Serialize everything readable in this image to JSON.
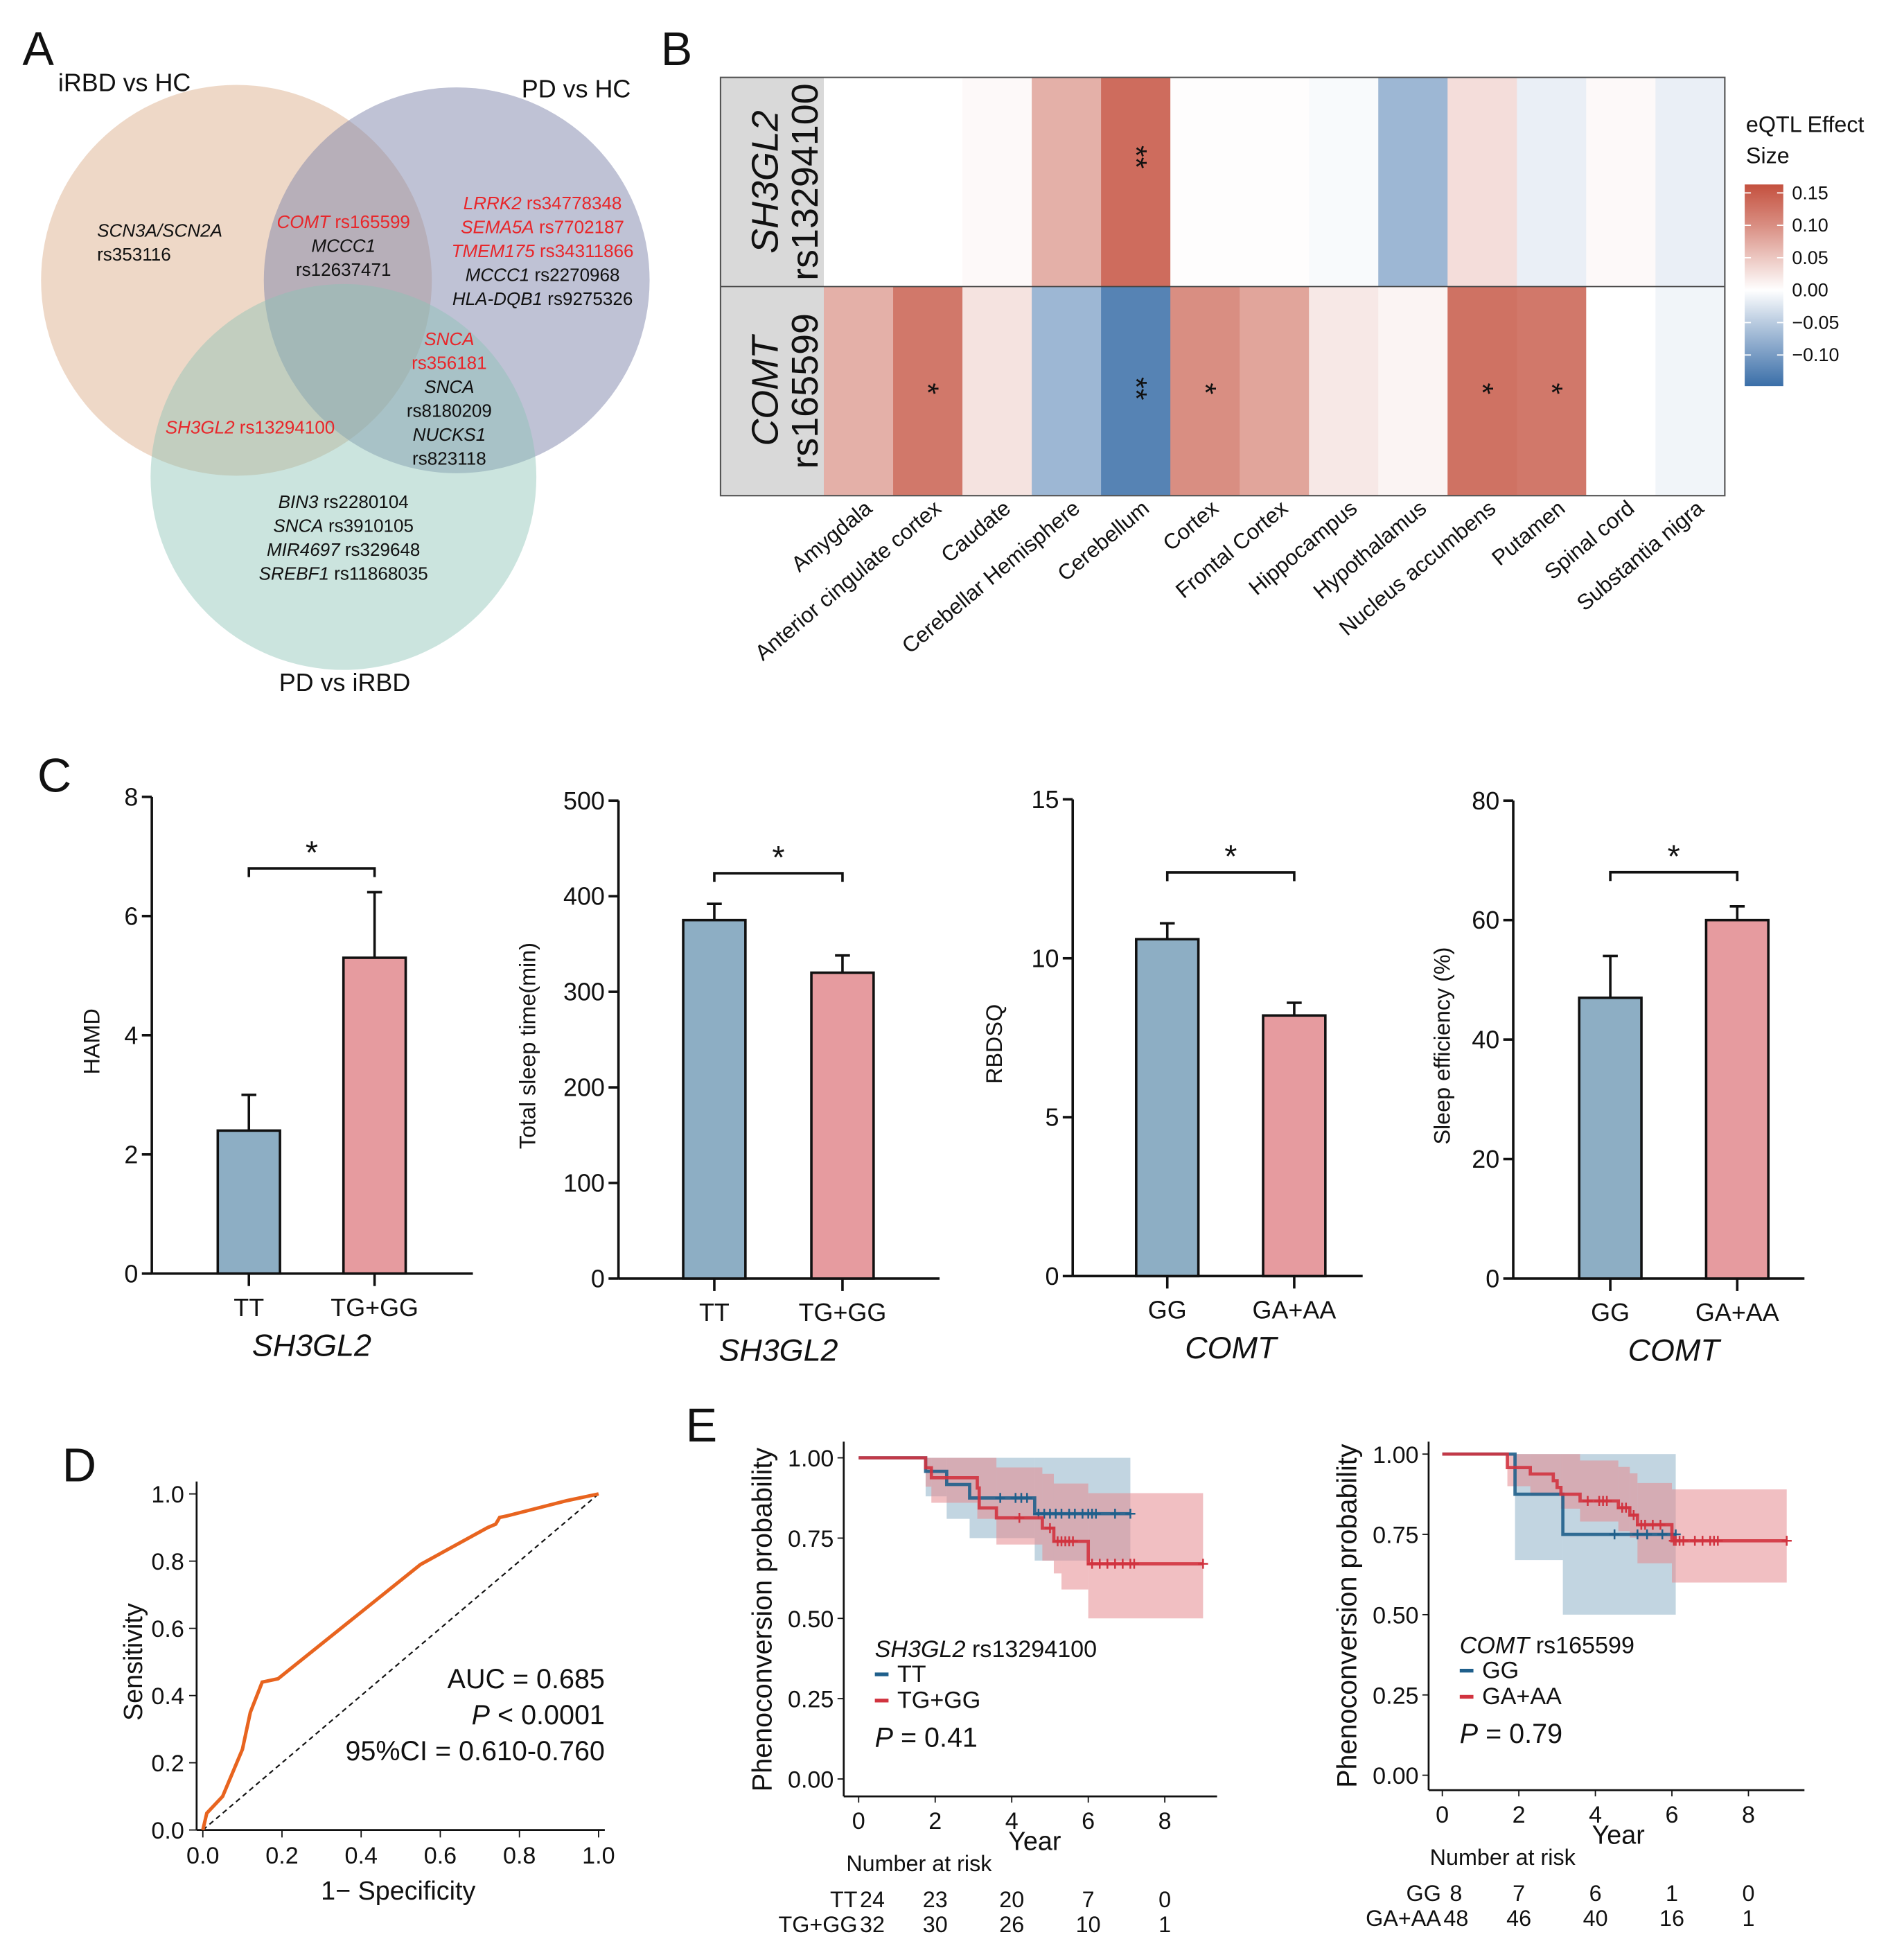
{
  "panel_labels": {
    "A": "A",
    "B": "B",
    "C": "C",
    "D": "D",
    "E": "E"
  },
  "venn": {
    "sets": [
      {
        "name": "iRBD vs HC",
        "color": "#d9a982"
      },
      {
        "name": "PD vs HC",
        "color": "#7f86ab"
      },
      {
        "name": "PD vs iRBD",
        "color": "#8cc3b5"
      }
    ],
    "highlight_color": "#e8262a",
    "regions": [
      {
        "region": "iRBD vs HC only",
        "lines": [
          {
            "gene": "SCN3A/SCN2A",
            "rs": ""
          },
          {
            "gene": "",
            "rs": "rs353116"
          }
        ]
      },
      {
        "region": "iRBD vs HC & PD vs HC",
        "lines": [
          {
            "gene": "COMT",
            "rs": "rs165599",
            "highlight": true
          },
          {
            "gene": "MCCC1",
            "rs": ""
          },
          {
            "gene": "",
            "rs": "rs12637471"
          }
        ]
      },
      {
        "region": "PD vs HC only",
        "lines": [
          {
            "gene": "LRRK2",
            "rs": "rs34778348",
            "highlight": true
          },
          {
            "gene": "SEMA5A",
            "rs": "rs7702187",
            "highlight": true
          },
          {
            "gene": "TMEM175",
            "rs": "rs34311866",
            "highlight": true
          },
          {
            "gene": "MCCC1",
            "rs": "rs2270968"
          },
          {
            "gene": "HLA-DQB1",
            "rs": "rs9275326"
          }
        ]
      },
      {
        "region": "PD vs HC & PD vs iRBD",
        "lines": [
          {
            "gene": "SNCA",
            "rs": "",
            "highlight": true
          },
          {
            "gene": "",
            "rs": "rs356181",
            "highlight": true
          },
          {
            "gene": "SNCA",
            "rs": ""
          },
          {
            "gene": "",
            "rs": "rs8180209"
          },
          {
            "gene": "NUCKS1",
            "rs": ""
          },
          {
            "gene": "",
            "rs": "rs823118"
          }
        ]
      },
      {
        "region": "iRBD vs HC & PD vs iRBD",
        "lines": [
          {
            "gene": "SH3GL2",
            "rs": "rs13294100",
            "highlight": true
          }
        ]
      },
      {
        "region": "PD vs iRBD only",
        "lines": [
          {
            "gene": "BIN3",
            "rs": "rs2280104"
          },
          {
            "gene": "SNCA",
            "rs": "rs3910105"
          },
          {
            "gene": "MIR4697",
            "rs": "rs329648"
          },
          {
            "gene": "SREBF1",
            "rs": "rs11868035"
          }
        ]
      }
    ]
  },
  "chart_data": [
    {
      "id": "B",
      "type": "heatmap",
      "rows": [
        {
          "gene": "SH3GL2",
          "rs": "rs13294100"
        },
        {
          "gene": "COMT",
          "rs": "rs165599"
        }
      ],
      "columns": [
        "Amygdala",
        "Anterior cingulate cortex",
        "Caudate",
        "Cerebellar Hemisphere",
        "Cerebellum",
        "Cortex",
        "Frontal Cortex",
        "Hippocampus",
        "Hypothalamus",
        "Nucleus accumbens",
        "Putamen",
        "Spinal cord",
        "Substantia nigra"
      ],
      "values": [
        [
          0.0,
          0.0,
          0.005,
          0.07,
          0.13,
          0.002,
          0.002,
          -0.005,
          -0.07,
          0.03,
          -0.015,
          0.005,
          -0.015
        ],
        [
          0.07,
          0.12,
          0.025,
          -0.07,
          -0.12,
          0.1,
          0.08,
          0.02,
          0.01,
          0.125,
          0.12,
          0.0,
          -0.01
        ]
      ],
      "significance": [
        [
          "",
          "",
          "",
          "",
          "**",
          "",
          "",
          "",
          "",
          "",
          "",
          "",
          ""
        ],
        [
          "",
          "*",
          "",
          "",
          "**",
          "*",
          "",
          "",
          "",
          "*",
          "*",
          "",
          ""
        ]
      ],
      "legend": {
        "title_line1": "eQTL Effect",
        "title_line2": "Size",
        "ticks": [
          "0.15",
          "0.10",
          "0.05",
          "0.00",
          "−0.05",
          "−0.10"
        ],
        "tick_values": [
          0.15,
          0.1,
          0.05,
          0.0,
          -0.05,
          -0.1
        ],
        "range": [
          -0.148,
          0.163
        ],
        "high_color": "#c4503e",
        "low_color": "#3a6ea8",
        "mid_color": "#ffffff"
      }
    },
    {
      "id": "C1",
      "type": "bar",
      "categories": [
        "TT",
        "TG+GG"
      ],
      "values": [
        2.4,
        5.3
      ],
      "error_upper": [
        3.0,
        6.4
      ],
      "ylabel": "HAMD",
      "xlabel": "SH3GL2",
      "ylim": [
        0,
        8
      ],
      "yticks": [
        "0",
        "2",
        "4",
        "6",
        "8"
      ],
      "significance": "*",
      "colors": [
        "#8daec4",
        "#e69b9f"
      ]
    },
    {
      "id": "C2",
      "type": "bar",
      "categories": [
        "TT",
        "TG+GG"
      ],
      "values": [
        375,
        320
      ],
      "error_upper": [
        392,
        338
      ],
      "ylabel": "Total sleep time(min)",
      "xlabel": "SH3GL2",
      "ylim": [
        0,
        500
      ],
      "yticks": [
        "0",
        "100",
        "200",
        "300",
        "400",
        "500"
      ],
      "significance": "*",
      "colors": [
        "#8daec4",
        "#e69b9f"
      ]
    },
    {
      "id": "C3",
      "type": "bar",
      "categories": [
        "GG",
        "GA+AA"
      ],
      "values": [
        10.6,
        8.2
      ],
      "error_upper": [
        11.1,
        8.6
      ],
      "ylabel": "RBDSQ",
      "xlabel": "COMT",
      "ylim": [
        0,
        15
      ],
      "yticks": [
        "0",
        "5",
        "10",
        "15"
      ],
      "significance": "*",
      "colors": [
        "#8daec4",
        "#e69b9f"
      ]
    },
    {
      "id": "C4",
      "type": "bar",
      "categories": [
        "GG",
        "GA+AA"
      ],
      "values": [
        47,
        60
      ],
      "error_upper": [
        54,
        62.3
      ],
      "ylabel": "Sleep efficiency (%)",
      "xlabel": "COMT",
      "ylim": [
        0,
        80
      ],
      "yticks": [
        "0",
        "20",
        "40",
        "60",
        "80"
      ],
      "significance": "*",
      "colors": [
        "#8daec4",
        "#e69b9f"
      ]
    },
    {
      "id": "D",
      "type": "line",
      "xlabel": "1− Specificity",
      "ylabel": "Sensitivity",
      "xlim": [
        0,
        1
      ],
      "ylim": [
        0,
        1
      ],
      "xticks": [
        "0.0",
        "0.2",
        "0.4",
        "0.6",
        "0.8",
        "1.0"
      ],
      "yticks": [
        "0.0",
        "0.2",
        "0.4",
        "0.6",
        "0.8",
        "1.0"
      ],
      "x": [
        0,
        0.01,
        0.05,
        0.1,
        0.12,
        0.15,
        0.19,
        0.55,
        0.72,
        0.74,
        0.75,
        0.77,
        0.92,
        1.0
      ],
      "y": [
        0,
        0.05,
        0.1,
        0.24,
        0.35,
        0.44,
        0.45,
        0.79,
        0.9,
        0.91,
        0.93,
        0.935,
        0.98,
        1.0
      ],
      "reference_line": "diagonal dashed",
      "color": "#e8641f",
      "annotations": {
        "auc": "AUC = 0.685",
        "p_symbol": "P",
        "p_rest": " < 0.0001",
        "ci": "95%CI = 0.610-0.760"
      }
    },
    {
      "id": "E1",
      "type": "line",
      "title_gene": "SH3GL2",
      "title_rs": " rs13294100",
      "xlabel": "Year",
      "ylabel": "Phenoconversion probability",
      "xlim": [
        0,
        9
      ],
      "ylim": [
        0,
        1
      ],
      "xticks": [
        "0",
        "2",
        "4",
        "6",
        "8"
      ],
      "yticks": [
        "0.00",
        "0.25",
        "0.50",
        "0.75",
        "1.00"
      ],
      "p_symbol": "P",
      "p_rest": " = 0.41",
      "risk_title": "Number at risk",
      "series": [
        {
          "name": "TT",
          "color": "#1f5f8b",
          "band_color": "#8fb2c8",
          "steps": [
            [
              0,
              1
            ],
            [
              1.75,
              0.958
            ],
            [
              2.3,
              0.917
            ],
            [
              2.9,
              0.875
            ],
            [
              4.6,
              0.826
            ]
          ],
          "end": 7.1,
          "band": [
            [
              0,
              1,
              1
            ],
            [
              1.75,
              0.88,
              1
            ],
            [
              2.3,
              0.81,
              1
            ],
            [
              2.9,
              0.75,
              1
            ],
            [
              4.6,
              0.68,
              1
            ]
          ],
          "censored": [
            3.7,
            4.1,
            4.25,
            4.4,
            4.7,
            4.85,
            5.0,
            5.15,
            5.3,
            5.5,
            5.65,
            5.85,
            6.0,
            6.1,
            6.2,
            6.7,
            7.1
          ],
          "at_risk": [
            "24",
            "23",
            "20",
            "7",
            "0"
          ]
        },
        {
          "name": "TG+GG",
          "color": "#d1333f",
          "band_color": "#e58a90",
          "steps": [
            [
              0,
              1
            ],
            [
              1.75,
              0.969
            ],
            [
              1.9,
              0.938
            ],
            [
              3.1,
              0.906
            ],
            [
              3.15,
              0.844
            ],
            [
              3.6,
              0.813
            ],
            [
              4.8,
              0.781
            ],
            [
              5.1,
              0.74
            ],
            [
              6.0,
              0.67
            ]
          ],
          "end": 9.0,
          "band": [
            [
              0,
              1,
              1
            ],
            [
              1.75,
              0.91,
              1
            ],
            [
              1.9,
              0.86,
              1
            ],
            [
              3.1,
              0.81,
              1
            ],
            [
              3.6,
              0.73,
              0.97
            ],
            [
              4.8,
              0.68,
              0.95
            ],
            [
              5.1,
              0.64,
              0.92
            ],
            [
              5.3,
              0.59,
              0.92
            ],
            [
              6.0,
              0.5,
              0.89
            ]
          ],
          "censored": [
            4.2,
            5.0,
            5.2,
            5.3,
            5.4,
            5.5,
            5.6,
            6.1,
            6.3,
            6.5,
            6.7,
            6.9,
            7.1,
            7.2,
            9.0
          ],
          "at_risk": [
            "32",
            "30",
            "26",
            "10",
            "1"
          ]
        }
      ]
    },
    {
      "id": "E2",
      "type": "line",
      "title_gene": "COMT",
      "title_rs": " rs165599",
      "xlabel": "Year",
      "ylabel": "Phenoconversion probability",
      "xlim": [
        0,
        9
      ],
      "ylim": [
        0,
        1
      ],
      "xticks": [
        "0",
        "2",
        "4",
        "6",
        "8"
      ],
      "yticks": [
        "0.00",
        "0.25",
        "0.50",
        "0.75",
        "1.00"
      ],
      "p_symbol": "P",
      "p_rest": " = 0.79",
      "risk_title": "Number at risk",
      "series": [
        {
          "name": "GG",
          "color": "#1f5f8b",
          "band_color": "#8fb2c8",
          "steps": [
            [
              0,
              1
            ],
            [
              1.9,
              0.875
            ],
            [
              3.15,
              0.75
            ]
          ],
          "end": 6.1,
          "band": [
            [
              0,
              1,
              1
            ],
            [
              1.9,
              0.67,
              1
            ],
            [
              3.15,
              0.5,
              1
            ]
          ],
          "censored": [
            4.5,
            5.1,
            5.35,
            5.75,
            6.1
          ],
          "at_risk": [
            "8",
            "7",
            "6",
            "1",
            "0"
          ]
        },
        {
          "name": "GA+AA",
          "color": "#d1333f",
          "band_color": "#e58a90",
          "steps": [
            [
              0,
              1
            ],
            [
              1.7,
              0.958
            ],
            [
              2.3,
              0.938
            ],
            [
              2.9,
              0.917
            ],
            [
              3.0,
              0.896
            ],
            [
              3.1,
              0.875
            ],
            [
              3.6,
              0.854
            ],
            [
              4.6,
              0.833
            ],
            [
              4.9,
              0.81
            ],
            [
              5.1,
              0.78
            ],
            [
              6.0,
              0.73
            ]
          ],
          "end": 9.0,
          "band": [
            [
              0,
              1,
              1
            ],
            [
              1.7,
              0.9,
              1
            ],
            [
              2.3,
              0.87,
              1
            ],
            [
              3.1,
              0.83,
              1
            ],
            [
              3.6,
              0.79,
              0.98
            ],
            [
              4.6,
              0.76,
              0.96
            ],
            [
              4.9,
              0.74,
              0.94
            ],
            [
              5.1,
              0.66,
              0.91
            ],
            [
              6.0,
              0.6,
              0.89
            ]
          ],
          "censored": [
            3.8,
            4.1,
            4.2,
            4.3,
            4.7,
            4.8,
            5.0,
            5.2,
            5.3,
            5.5,
            5.7,
            6.05,
            6.1,
            6.2,
            6.3,
            6.6,
            6.8,
            7.0,
            7.1,
            7.2,
            9.0
          ],
          "at_risk": [
            "48",
            "46",
            "40",
            "16",
            "1"
          ]
        }
      ]
    }
  ]
}
